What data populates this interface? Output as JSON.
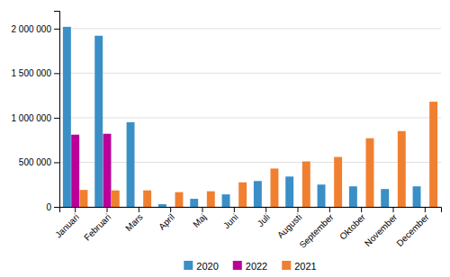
{
  "chart_data": {
    "type": "bar",
    "categories": [
      "Januari",
      "Februari",
      "Mars",
      "April",
      "Maj",
      "Juni",
      "Juli",
      "Augusti",
      "September",
      "Oktober",
      "November",
      "December"
    ],
    "series": [
      {
        "name": "2020",
        "color": "#3a8fc7",
        "values": [
          2020000,
          1920000,
          950000,
          30000,
          90000,
          140000,
          290000,
          340000,
          250000,
          230000,
          200000,
          230000
        ]
      },
      {
        "name": "2022",
        "color": "#bb0099",
        "values": [
          810000,
          820000,
          0,
          0,
          0,
          0,
          0,
          0,
          0,
          0,
          0,
          0
        ]
      },
      {
        "name": "2021",
        "color": "#f08030",
        "values": [
          190000,
          185000,
          185000,
          165000,
          175000,
          275000,
          430000,
          510000,
          560000,
          770000,
          850000,
          1180000
        ]
      }
    ],
    "ylim": [
      0,
      2200000
    ],
    "yticks": [
      0,
      {
        "value": 500000,
        "label": "500 000"
      },
      {
        "value": 1000000,
        "label": "1 000 000"
      },
      {
        "value": 1500000,
        "label": "1 500 000"
      },
      {
        "value": 2000000,
        "label": "2 000 000"
      }
    ],
    "grid": true,
    "legend": "bottom"
  }
}
